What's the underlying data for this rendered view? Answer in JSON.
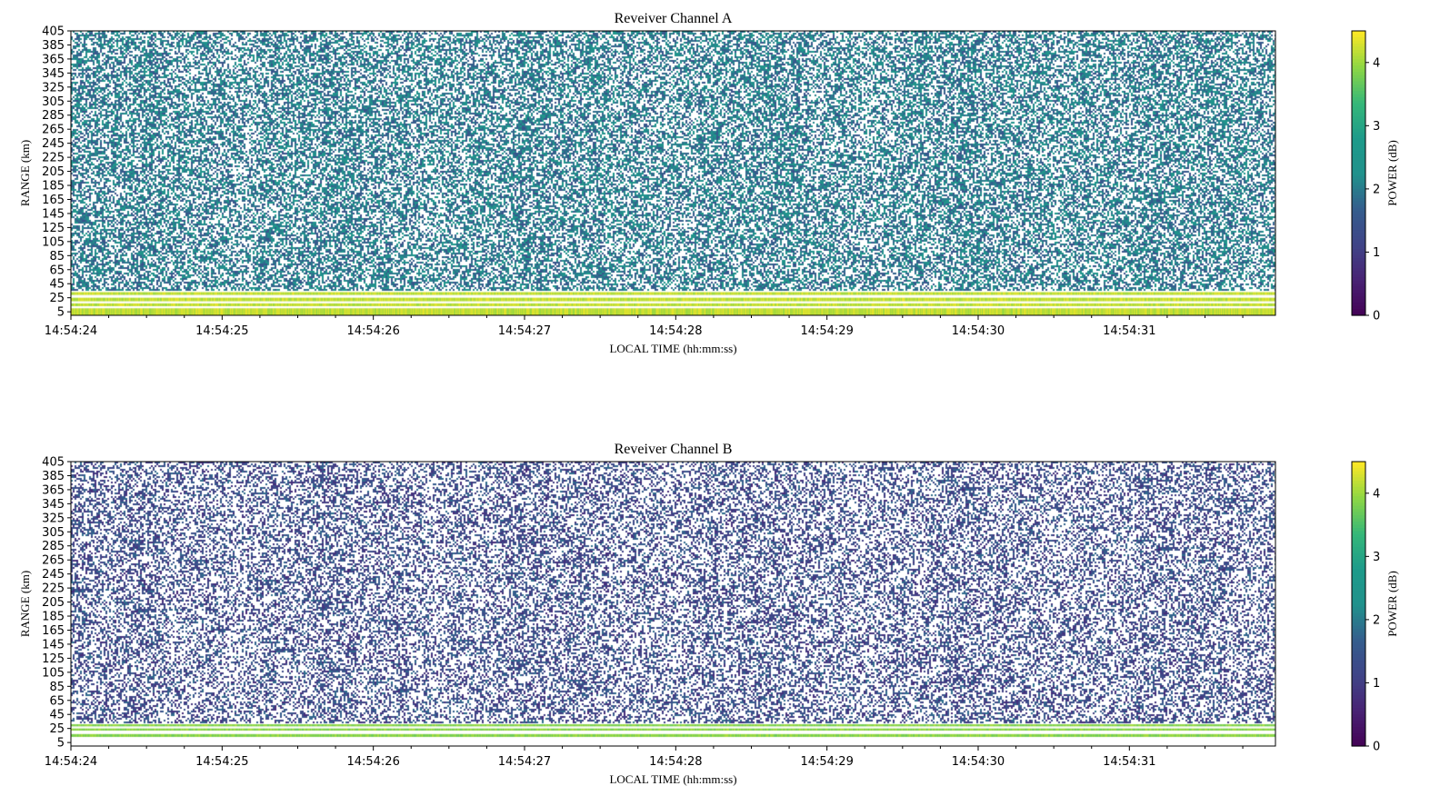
{
  "chart_data": [
    {
      "type": "heatmap",
      "title": "Reveiver Channel A",
      "xlabel": "LOCAL TIME (hh:mm:ss)",
      "ylabel": "RANGE (km)",
      "x_ticks": [
        "14:54:24",
        "14:54:25",
        "14:54:26",
        "14:54:27",
        "14:54:28",
        "14:54:29",
        "14:54:30",
        "14:54:31"
      ],
      "y_ticks": [
        5,
        25,
        45,
        65,
        85,
        105,
        125,
        145,
        165,
        185,
        205,
        225,
        245,
        265,
        285,
        305,
        325,
        345,
        365,
        385,
        405
      ],
      "ylim": [
        0,
        405
      ],
      "colorbar": {
        "label": "POWER (dB)",
        "ticks": [
          0,
          1,
          2,
          3,
          4
        ],
        "range": [
          0,
          4.5
        ],
        "colormap": "viridis"
      },
      "features": {
        "noise_region_km": [
          35,
          405
        ],
        "noise_power_db": 2.0,
        "noise_fill_fraction": 0.55,
        "strong_bands_km": [
          [
            0,
            10
          ],
          [
            13,
            17
          ],
          [
            20,
            25
          ],
          [
            29,
            33
          ]
        ],
        "strong_power_db": 4.2
      }
    },
    {
      "type": "heatmap",
      "title": "Reveiver Channel B",
      "xlabel": "LOCAL TIME (hh:mm:ss)",
      "ylabel": "RANGE (km)",
      "x_ticks": [
        "14:54:24",
        "14:54:25",
        "14:54:26",
        "14:54:27",
        "14:54:28",
        "14:54:29",
        "14:54:30",
        "14:54:31"
      ],
      "y_ticks": [
        5,
        25,
        45,
        65,
        85,
        105,
        125,
        145,
        165,
        185,
        205,
        225,
        245,
        265,
        285,
        305,
        325,
        345,
        365,
        385,
        405
      ],
      "ylim": [
        0,
        405
      ],
      "colorbar": {
        "label": "POWER (dB)",
        "ticks": [
          0,
          1,
          2,
          3,
          4
        ],
        "range": [
          0,
          4.5
        ],
        "colormap": "viridis"
      },
      "features": {
        "noise_region_km": [
          33,
          405
        ],
        "noise_power_db": 1.3,
        "noise_fill_fraction": 0.42,
        "strong_bands_km": [
          [
            13,
            17
          ],
          [
            22,
            25
          ],
          [
            28,
            31
          ]
        ],
        "strong_power_db": 3.9
      }
    }
  ]
}
